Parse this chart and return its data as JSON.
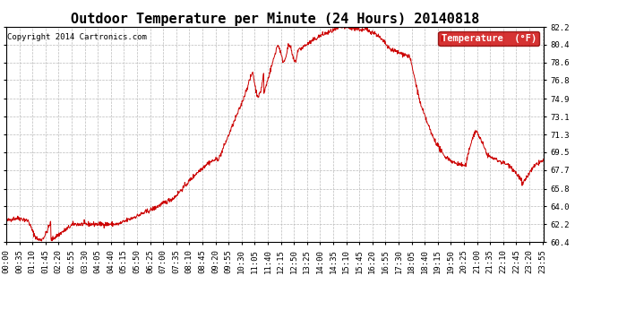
{
  "title": "Outdoor Temperature per Minute (24 Hours) 20140818",
  "copyright_text": "Copyright 2014 Cartronics.com",
  "legend_label": "Temperature  (°F)",
  "legend_bg": "#cc0000",
  "legend_text_color": "#ffffff",
  "line_color": "#cc0000",
  "background_color": "#ffffff",
  "grid_color": "#bbbbbb",
  "yticks": [
    60.4,
    62.2,
    64.0,
    65.8,
    67.7,
    69.5,
    71.3,
    73.1,
    74.9,
    76.8,
    78.6,
    80.4,
    82.2
  ],
  "ylim": [
    60.4,
    82.2
  ],
  "title_fontsize": 11,
  "tick_fontsize": 6.5,
  "x_tick_interval": 35,
  "total_minutes": 1440,
  "figwidth": 6.9,
  "figheight": 3.75,
  "dpi": 100
}
